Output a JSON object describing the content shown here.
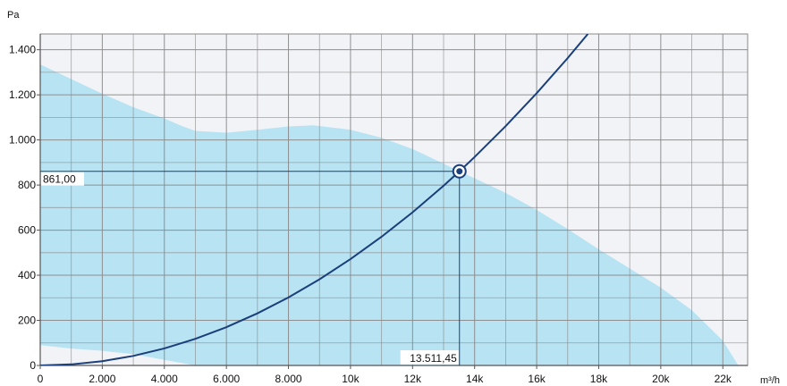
{
  "chart_data": {
    "type": "line",
    "title": "",
    "ylabel": "Pa",
    "xlabel": "m³/h",
    "xlim": [
      0,
      22800
    ],
    "ylim": [
      0,
      1470
    ],
    "x_ticks": [
      {
        "value": 0,
        "label": "0"
      },
      {
        "value": 2000,
        "label": "2.000"
      },
      {
        "value": 4000,
        "label": "4.000"
      },
      {
        "value": 6000,
        "label": "6.000"
      },
      {
        "value": 8000,
        "label": "8.000"
      },
      {
        "value": 10000,
        "label": "10k"
      },
      {
        "value": 12000,
        "label": "12k"
      },
      {
        "value": 14000,
        "label": "14k"
      },
      {
        "value": 16000,
        "label": "16k"
      },
      {
        "value": 18000,
        "label": "18k"
      },
      {
        "value": 20000,
        "label": "20k"
      },
      {
        "value": 22000,
        "label": "22k"
      }
    ],
    "y_ticks": [
      {
        "value": 0,
        "label": "0"
      },
      {
        "value": 200,
        "label": "200"
      },
      {
        "value": 400,
        "label": "400"
      },
      {
        "value": 600,
        "label": "600"
      },
      {
        "value": 800,
        "label": "800"
      },
      {
        "value": 1000,
        "label": "1.000"
      },
      {
        "value": 1200,
        "label": "1.200"
      },
      {
        "value": 1400,
        "label": "1.400"
      }
    ],
    "grid": true,
    "operating_range": {
      "upper": [
        [
          0,
          1335
        ],
        [
          1000,
          1270
        ],
        [
          2000,
          1205
        ],
        [
          3000,
          1145
        ],
        [
          4000,
          1095
        ],
        [
          4600,
          1060
        ],
        [
          5000,
          1040
        ],
        [
          6000,
          1032
        ],
        [
          7000,
          1045
        ],
        [
          8000,
          1060
        ],
        [
          8800,
          1065
        ],
        [
          10000,
          1045
        ],
        [
          11000,
          1010
        ],
        [
          12000,
          960
        ],
        [
          13000,
          895
        ],
        [
          13500,
          861
        ],
        [
          14000,
          830
        ],
        [
          15000,
          765
        ],
        [
          16000,
          690
        ],
        [
          17000,
          605
        ],
        [
          18000,
          515
        ],
        [
          19000,
          430
        ],
        [
          20000,
          345
        ],
        [
          21000,
          245
        ],
        [
          22000,
          110
        ],
        [
          22500,
          0
        ]
      ],
      "lower": [
        [
          0,
          90
        ],
        [
          1000,
          75
        ],
        [
          2000,
          65
        ],
        [
          3000,
          50
        ],
        [
          4000,
          25
        ],
        [
          5000,
          0
        ]
      ],
      "fill_color": "#b8e3f2"
    },
    "series": [
      {
        "color": "#1a3f7a",
        "x": [
          0,
          1000,
          2000,
          3000,
          4000,
          5000,
          6000,
          7000,
          8000,
          9000,
          10000,
          11000,
          12000,
          13000,
          13511.45,
          14000,
          15000,
          16000,
          17000,
          17650
        ],
        "y": [
          0,
          4.7,
          18.9,
          42.4,
          75.4,
          117.9,
          169.8,
          231.1,
          301.8,
          382.0,
          471.6,
          570.6,
          679.1,
          797.0,
          861.0,
          924.4,
          1061.2,
          1207.4,
          1363.0,
          1470
        ]
      }
    ],
    "operating_point": {
      "x": 13511.45,
      "y": 861.0,
      "x_label": "13.511,45",
      "y_label": "861,00"
    },
    "colors": {
      "plot_background": "#f2f3f7",
      "grid": "#8a8a8a",
      "curve": "#1a3f7a"
    }
  }
}
